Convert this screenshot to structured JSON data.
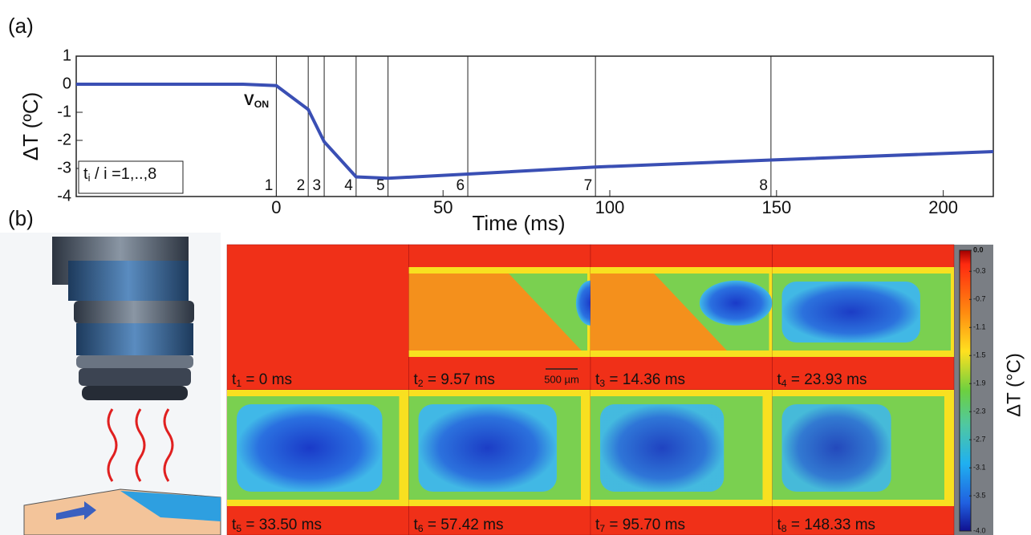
{
  "panel_a_label": "(a)",
  "panel_b_label": "(b)",
  "chart_data": {
    "type": "line",
    "ylabel": "ΔT (ºC)",
    "xlabel": "Time (ms)",
    "x": [
      -60,
      -10,
      0,
      9.57,
      14.36,
      23.93,
      33.5,
      57.42,
      95.7,
      148.33,
      215
    ],
    "values": [
      0,
      0,
      -0.05,
      -0.9,
      -2.05,
      -3.3,
      -3.35,
      -3.2,
      -2.95,
      -2.7,
      -2.4
    ],
    "color": "#3a4fb4",
    "xlim": [
      -60,
      215
    ],
    "ylim": [
      -4,
      1
    ],
    "xticks": [
      0,
      50,
      100,
      150,
      200
    ],
    "yticks": [
      -4,
      -3,
      -2,
      -1,
      0,
      1
    ],
    "markers": {
      "x": [
        0,
        9.57,
        14.36,
        23.93,
        33.5,
        57.42,
        95.7,
        148.33
      ],
      "labels": [
        "1",
        "2",
        "3",
        "4",
        "5",
        "6",
        "7",
        "8"
      ]
    },
    "annotation": {
      "base": "V",
      "sub": "ON"
    },
    "legend": {
      "base": "t",
      "sub": "i",
      "rest": " / i =1,..,8"
    }
  },
  "frames": [
    [
      "t",
      "1",
      " = 0 ms"
    ],
    [
      "t",
      "2",
      " = 9.57 ms"
    ],
    [
      "t",
      "3",
      " = 14.36 ms"
    ],
    [
      "t",
      "4",
      " = 23.93 ms"
    ],
    [
      "t",
      "5",
      " = 33.50 ms"
    ],
    [
      "t",
      "6",
      " = 57.42 ms"
    ],
    [
      "t",
      "7",
      " = 95.70 ms"
    ],
    [
      "t",
      "8",
      " = 148.33 ms"
    ]
  ],
  "scale_bar": "500 µm",
  "colorbar": {
    "label": "ΔT (°C)",
    "lim": [
      -4,
      0
    ],
    "ticks": [
      {
        "value": 0,
        "label": "0.0"
      },
      {
        "value": -0.3,
        "label": "-0.3"
      },
      {
        "value": -0.7,
        "label": "-0.7"
      },
      {
        "value": -1.1,
        "label": "-1.1"
      },
      {
        "value": -1.5,
        "label": "-1.5"
      },
      {
        "value": -1.9,
        "label": "-1.9"
      },
      {
        "value": -2.3,
        "label": "-2.3"
      },
      {
        "value": -2.7,
        "label": "-2.7"
      },
      {
        "value": -3.1,
        "label": "-3.1"
      },
      {
        "value": -3.5,
        "label": "-3.5"
      },
      {
        "value": -4.0,
        "label": "-4.0"
      }
    ]
  }
}
